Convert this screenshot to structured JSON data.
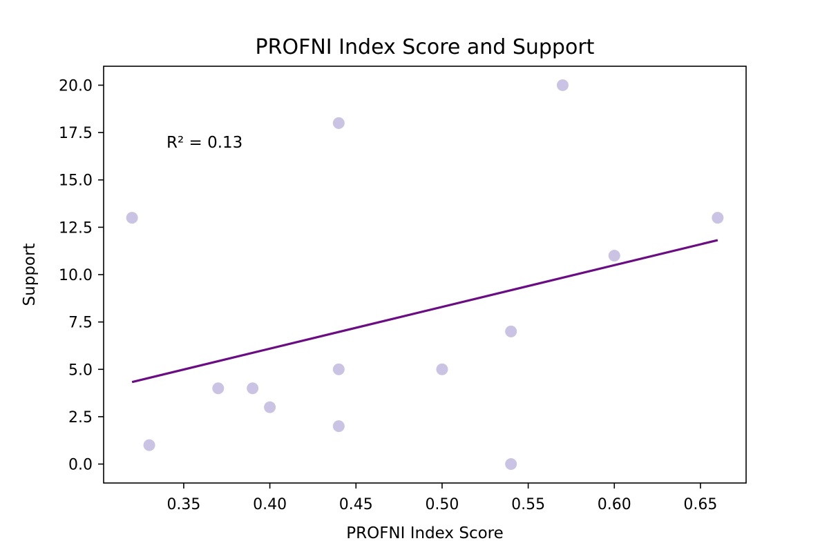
{
  "chart_data": {
    "type": "scatter",
    "title": "PROFNI Index Score and Support",
    "xlabel": "PROFNI Index Score",
    "ylabel": "Support",
    "xlim": [
      0.3035,
      0.6765
    ],
    "ylim": [
      -1.0,
      21.0
    ],
    "x_ticks": [
      "0.35",
      "0.40",
      "0.45",
      "0.50",
      "0.55",
      "0.60",
      "0.65"
    ],
    "x_tick_values": [
      0.35,
      0.4,
      0.45,
      0.5,
      0.55,
      0.6,
      0.65
    ],
    "y_ticks": [
      "0.0",
      "2.5",
      "5.0",
      "7.5",
      "10.0",
      "12.5",
      "15.0",
      "17.5",
      "20.0"
    ],
    "y_tick_values": [
      0.0,
      2.5,
      5.0,
      7.5,
      10.0,
      12.5,
      15.0,
      17.5,
      20.0
    ],
    "points": [
      {
        "x": 0.32,
        "y": 13
      },
      {
        "x": 0.33,
        "y": 1
      },
      {
        "x": 0.37,
        "y": 4
      },
      {
        "x": 0.39,
        "y": 4
      },
      {
        "x": 0.4,
        "y": 3
      },
      {
        "x": 0.44,
        "y": 18
      },
      {
        "x": 0.44,
        "y": 5
      },
      {
        "x": 0.44,
        "y": 2
      },
      {
        "x": 0.5,
        "y": 5
      },
      {
        "x": 0.54,
        "y": 7
      },
      {
        "x": 0.54,
        "y": 0
      },
      {
        "x": 0.57,
        "y": 20
      },
      {
        "x": 0.6,
        "y": 11
      },
      {
        "x": 0.66,
        "y": 13
      }
    ],
    "trendline": {
      "x": [
        0.32,
        0.66
      ],
      "y": [
        4.33,
        11.82
      ]
    },
    "annotation": {
      "text": "R² = 0.13",
      "x": 0.34,
      "y": 16.7
    },
    "grid": false,
    "colors": {
      "points": "#cbc3e3",
      "trendline": "#6a0d83"
    }
  }
}
